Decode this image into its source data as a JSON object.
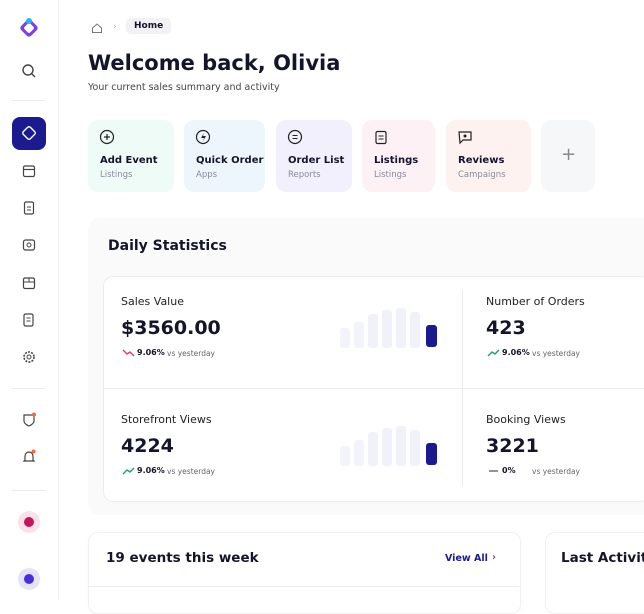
{
  "breadcrumb": {
    "current": "Home"
  },
  "header": {
    "title": "Welcome back, Olivia",
    "subtitle": "Your current sales summary and activity"
  },
  "quick_actions": [
    {
      "title": "Add Event",
      "subtitle": "Listings"
    },
    {
      "title": "Quick Order",
      "subtitle": "Apps"
    },
    {
      "title": "Order List",
      "subtitle": "Reports"
    },
    {
      "title": "Listings",
      "subtitle": "Listings"
    },
    {
      "title": "Reviews",
      "subtitle": "Campaigns"
    }
  ],
  "daily_statistics": {
    "title": "Daily Statistics",
    "stats": [
      {
        "label": "Sales Value",
        "value": "$3560.00",
        "change": "9.06%",
        "note": "vs yesterday",
        "trend": "down"
      },
      {
        "label": "Number of Orders",
        "value": "423",
        "change": "9.06%",
        "note": "vs yesterday",
        "trend": "up"
      },
      {
        "label": "Storefront Views",
        "value": "4224",
        "change": "9.06%",
        "note": "vs yesterday",
        "trend": "up"
      },
      {
        "label": "Booking Views",
        "value": "3221",
        "change": "0%",
        "note": "vs yesterday",
        "trend": "flat"
      }
    ]
  },
  "events": {
    "title": "19 events this week",
    "link": "View All"
  },
  "activity": {
    "title": "Last Activity"
  }
}
